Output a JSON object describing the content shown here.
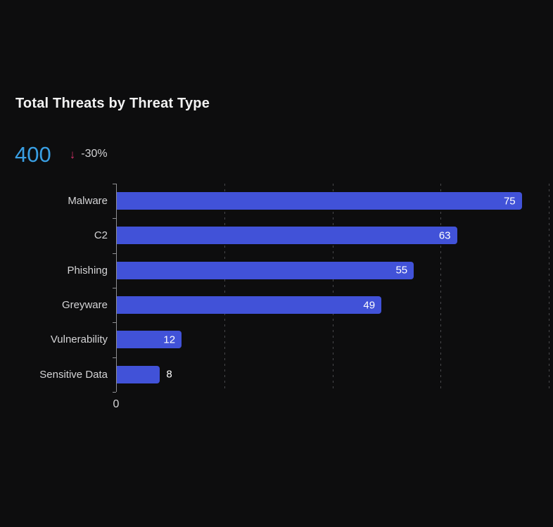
{
  "header": {
    "title": "Total Threats by Threat Type"
  },
  "kpi": {
    "value": "400",
    "trend_arrow": "↓",
    "trend_direction": "down",
    "trend_label": "-30%",
    "value_color": "#399fe3",
    "trend_arrow_color": "#d23069"
  },
  "chart_data": {
    "type": "bar",
    "orientation": "horizontal",
    "title": "Total Threats by Threat Type",
    "categories": [
      "Malware",
      "C2",
      "Phishing",
      "Greyware",
      "Vulnerability",
      "Sensitive Data"
    ],
    "values": [
      75,
      63,
      55,
      49,
      12,
      8
    ],
    "xlabel": "",
    "ylabel": "",
    "xlim": [
      0,
      80
    ],
    "x_tick_label": "0",
    "gridlines_at": [
      20,
      40,
      60,
      80
    ],
    "grid_style": "dashed-vertical",
    "legend": "none",
    "bar_color": "#4152d8",
    "value_label_color": "#ffffff",
    "category_label_color": "#d4d4d6",
    "axis_color": "#8f8f92",
    "grid_color": "#48484b",
    "background_color": "#0d0d0e"
  }
}
